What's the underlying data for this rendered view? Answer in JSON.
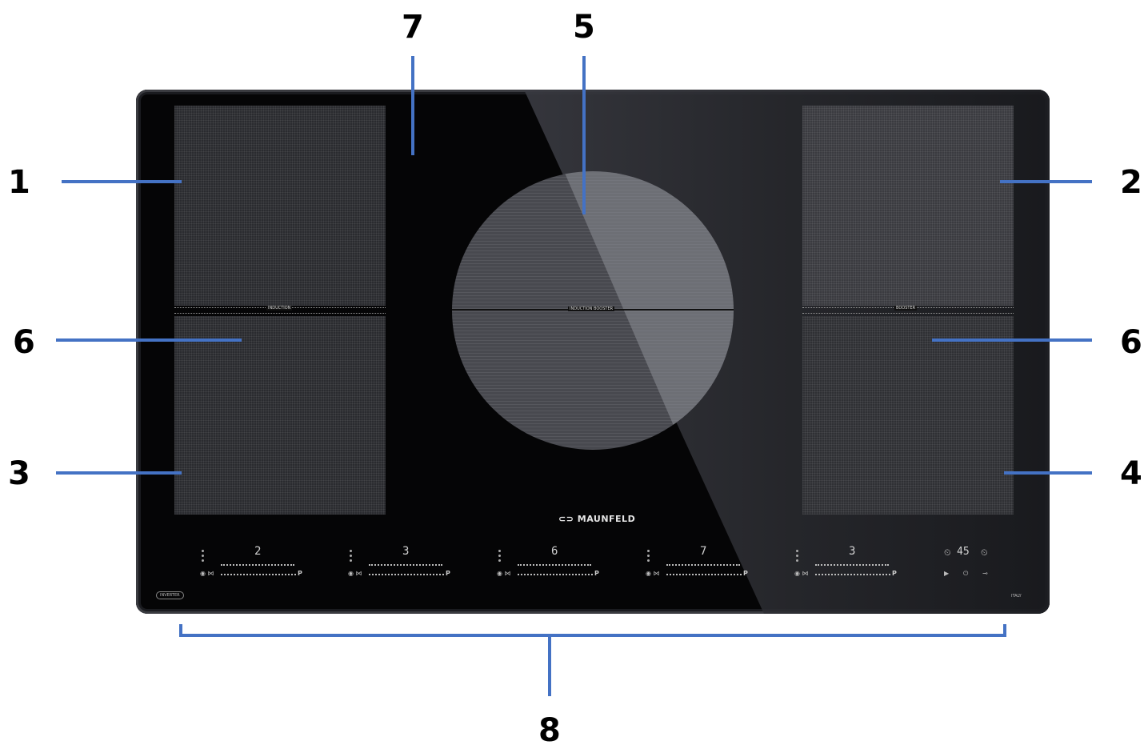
{
  "callouts": [
    "1",
    "2",
    "3",
    "4",
    "5",
    "6",
    "6",
    "7",
    "8"
  ],
  "panel": {
    "brand": "MAUNFELD",
    "booster_label_l1": "INDUCTION",
    "booster_label_l2": "BOOSTER",
    "booster_center": "INDUCTION   BOOSTER",
    "levels": [
      "2",
      "3",
      "6",
      "7",
      "3"
    ],
    "timer": "45",
    "p_label": "P",
    "left_badge": "INVERTER",
    "right_badge": "ITALY"
  },
  "colors": {
    "line": "#4472c4",
    "glass": "#050506",
    "zone": "#2a2b2f"
  }
}
